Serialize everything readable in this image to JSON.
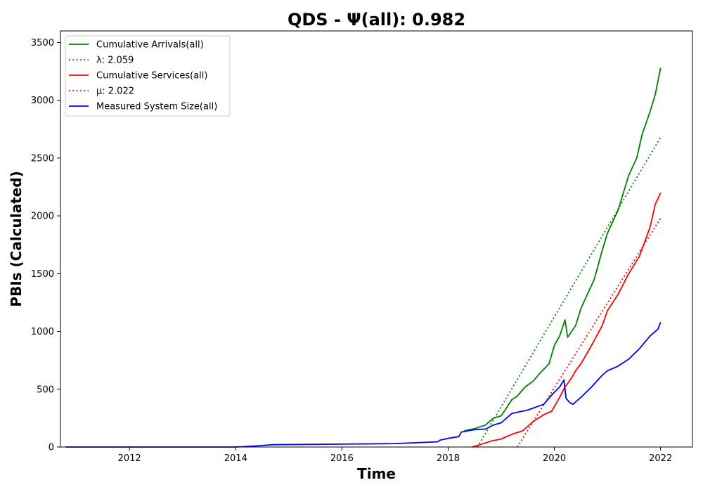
{
  "chart_data": {
    "type": "line",
    "title": "QDS -  Ψ(all): 0.982",
    "xlabel": "Time",
    "ylabel": "PBIs (Calculated)",
    "xlim": [
      2010.7,
      2022.6
    ],
    "ylim": [
      0,
      3600
    ],
    "xticks": [
      2012,
      2014,
      2016,
      2018,
      2020,
      2022
    ],
    "yticks": [
      0,
      500,
      1000,
      1500,
      2000,
      2500,
      3000,
      3500
    ],
    "grid": false,
    "legend_position": "upper-left",
    "series": [
      {
        "name": "Cumulative Arrivals(all)",
        "color": "#008000",
        "style": "solid",
        "x": [
          2018.3,
          2018.5,
          2018.7,
          2018.85,
          2019.0,
          2019.1,
          2019.2,
          2019.3,
          2019.45,
          2019.6,
          2019.75,
          2019.9,
          2020.0,
          2020.1,
          2020.2,
          2020.25,
          2020.4,
          2020.5,
          2020.6,
          2020.75,
          2020.9,
          2021.0,
          2021.2,
          2021.4,
          2021.55,
          2021.65,
          2021.8,
          2021.9,
          2022.0
        ],
        "values": [
          140,
          160,
          190,
          250,
          270,
          340,
          410,
          440,
          520,
          570,
          650,
          720,
          880,
          960,
          1100,
          950,
          1050,
          1200,
          1300,
          1450,
          1700,
          1850,
          2050,
          2350,
          2500,
          2700,
          2900,
          3050,
          3280
        ]
      },
      {
        "name": "λ: 2.059",
        "color": "#008000",
        "style": "dotted",
        "x": [
          2018.55,
          2022.0
        ],
        "values": [
          0,
          2680
        ]
      },
      {
        "name": "Cumulative Services(all)",
        "color": "#ff0000",
        "style": "solid",
        "x": [
          2018.45,
          2018.6,
          2018.8,
          2019.0,
          2019.2,
          2019.4,
          2019.6,
          2019.8,
          2019.95,
          2020.1,
          2020.2,
          2020.3,
          2020.4,
          2020.5,
          2020.7,
          2020.9,
          2021.0,
          2021.2,
          2021.4,
          2021.6,
          2021.8,
          2021.9,
          2022.0
        ],
        "values": [
          0,
          20,
          50,
          70,
          110,
          140,
          220,
          280,
          310,
          430,
          520,
          580,
          660,
          720,
          880,
          1050,
          1180,
          1320,
          1500,
          1650,
          1900,
          2100,
          2200
        ]
      },
      {
        "name": "μ: 2.022",
        "color": "#ff0000",
        "style": "dotted",
        "x": [
          2019.3,
          2022.0
        ],
        "values": [
          0,
          1980
        ]
      },
      {
        "name": "Measured System Size(all)",
        "color": "#0000ff",
        "style": "solid",
        "x": [
          2010.8,
          2014.0,
          2014.4,
          2014.7,
          2016.0,
          2017.0,
          2017.8,
          2017.85,
          2018.0,
          2018.2,
          2018.25,
          2018.5,
          2018.7,
          2018.85,
          2019.0,
          2019.2,
          2019.5,
          2019.8,
          2019.95,
          2020.1,
          2020.18,
          2020.22,
          2020.3,
          2020.35,
          2020.5,
          2020.7,
          2020.9,
          2021.0,
          2021.2,
          2021.4,
          2021.6,
          2021.8,
          2021.95,
          2022.0
        ],
        "values": [
          0,
          0,
          10,
          20,
          25,
          30,
          45,
          60,
          75,
          90,
          130,
          150,
          155,
          190,
          210,
          290,
          320,
          370,
          450,
          520,
          580,
          420,
          380,
          370,
          430,
          520,
          620,
          660,
          700,
          760,
          850,
          960,
          1020,
          1080
        ]
      }
    ]
  }
}
